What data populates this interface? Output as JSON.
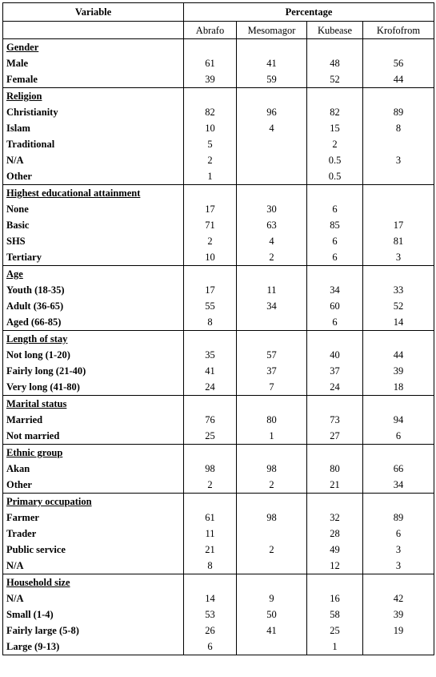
{
  "header": {
    "variable_label": "Variable",
    "percentage_label": "Percentage",
    "columns": [
      "Abrafo",
      "Mesomagor",
      "Kubease",
      "Krofofrom"
    ]
  },
  "groups": [
    {
      "title": "Gender",
      "rows": [
        {
          "label": "Male",
          "indent": true,
          "values": [
            "61",
            "41",
            "48",
            "56"
          ]
        },
        {
          "label": "Female",
          "indent": true,
          "values": [
            "39",
            "59",
            "52",
            "44"
          ]
        }
      ]
    },
    {
      "title": "Religion",
      "rows": [
        {
          "label": "Christianity",
          "indent": true,
          "values": [
            "82",
            "96",
            "82",
            "89"
          ]
        },
        {
          "label": "Islam",
          "indent": true,
          "values": [
            "10",
            "4",
            "15",
            "8"
          ]
        },
        {
          "label": "Traditional",
          "indent": true,
          "values": [
            "5",
            "",
            "2",
            ""
          ]
        },
        {
          "label": "N/A",
          "indent": true,
          "values": [
            "2",
            "",
            "0.5",
            "3"
          ]
        },
        {
          "label": "Other",
          "indent": false,
          "values": [
            "1",
            "",
            "0.5",
            ""
          ]
        }
      ]
    },
    {
      "title": "Highest educational attainment",
      "rows": [
        {
          "label": "None",
          "indent": true,
          "values": [
            "17",
            "30",
            "6",
            ""
          ]
        },
        {
          "label": "Basic",
          "indent": true,
          "values": [
            "71",
            "63",
            "85",
            "17"
          ]
        },
        {
          "label": "SHS",
          "indent": true,
          "values": [
            "2",
            "4",
            "6",
            "81"
          ]
        },
        {
          "label": "Tertiary",
          "indent": false,
          "values": [
            "10",
            "2",
            "6",
            "3"
          ]
        }
      ]
    },
    {
      "title": "Age",
      "rows": [
        {
          "label": "Youth (18-35)",
          "indent": true,
          "values": [
            "17",
            "11",
            "34",
            "33"
          ]
        },
        {
          "label": "Adult (36-65)",
          "indent": true,
          "values": [
            "55",
            "34",
            "60",
            "52"
          ]
        },
        {
          "label": "Aged (66-85)",
          "indent": true,
          "values": [
            "8",
            "",
            "6",
            "14"
          ]
        }
      ]
    },
    {
      "title": "Length of stay",
      "rows": [
        {
          "label": "Not long (1-20)",
          "indent": true,
          "values": [
            "35",
            "57",
            "40",
            "44"
          ]
        },
        {
          "label": "Fairly long (21-40)",
          "indent": true,
          "values": [
            "41",
            "37",
            "37",
            "39"
          ]
        },
        {
          "label": "Very long (41-80)",
          "indent": true,
          "values": [
            "24",
            "7",
            "24",
            "18"
          ]
        }
      ]
    },
    {
      "title": "Marital status",
      "rows": [
        {
          "label": "Married",
          "indent": true,
          "values": [
            "76",
            "80",
            "73",
            "94"
          ]
        },
        {
          "label": "Not married",
          "indent": true,
          "values": [
            "25",
            "1",
            "27",
            "6"
          ]
        }
      ]
    },
    {
      "title": "Ethnic group",
      "rows": [
        {
          "label": "Akan",
          "indent": true,
          "values": [
            "98",
            "98",
            "80",
            "66"
          ]
        },
        {
          "label": "Other",
          "indent": true,
          "values": [
            "2",
            "2",
            "21",
            "34"
          ]
        }
      ]
    },
    {
      "title": "Primary occupation",
      "rows": [
        {
          "label": "Farmer",
          "indent": true,
          "values": [
            "61",
            "98",
            "32",
            "89"
          ]
        },
        {
          "label": "Trader",
          "indent": true,
          "values": [
            "11",
            "",
            "28",
            "6"
          ]
        },
        {
          "label": "Public service",
          "indent": true,
          "values": [
            "21",
            "2",
            "49",
            "3"
          ]
        },
        {
          "label": "N/A",
          "indent": true,
          "values": [
            "8",
            "",
            "12",
            "3"
          ]
        }
      ]
    },
    {
      "title": "Household size",
      "rows": [
        {
          "label": "N/A",
          "indent": true,
          "values": [
            "14",
            "9",
            "16",
            "42"
          ]
        },
        {
          "label": "Small (1-4)",
          "indent": true,
          "values": [
            "53",
            "50",
            "58",
            "39"
          ]
        },
        {
          "label": "Fairly large (5-8)",
          "indent": true,
          "values": [
            "26",
            "41",
            "25",
            "19"
          ]
        },
        {
          "label": "Large (9-13)",
          "indent": true,
          "values": [
            "6",
            "",
            "1",
            ""
          ]
        }
      ]
    }
  ]
}
